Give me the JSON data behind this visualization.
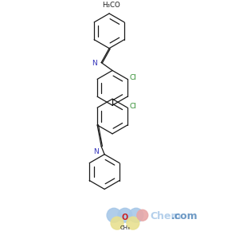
{
  "bg_color": "#ffffff",
  "line_color": "#1a1a1a",
  "N_color": "#3333bb",
  "Cl_color": "#2d8c2d",
  "O_color": "#cc2222",
  "watermark_colors": {
    "blue1": "#a8c8e8",
    "blue2": "#a8c8e8",
    "blue3": "#a8c8e8",
    "red1": "#e8a8a8",
    "yellow1": "#e8e090",
    "yellow2": "#e8e090",
    "O_text": "#cc2222",
    "chem_text": "#a8c8e8",
    "com_text": "#5588bb"
  },
  "top_label": "H₃CO",
  "Cl_label1": "Cl",
  "Cl_label2": "Cl",
  "N_label1": "N",
  "N_label2": "N",
  "O_label": "O",
  "CH3_label": "CH₃",
  "figsize": [
    3.0,
    3.0
  ],
  "dpi": 100
}
